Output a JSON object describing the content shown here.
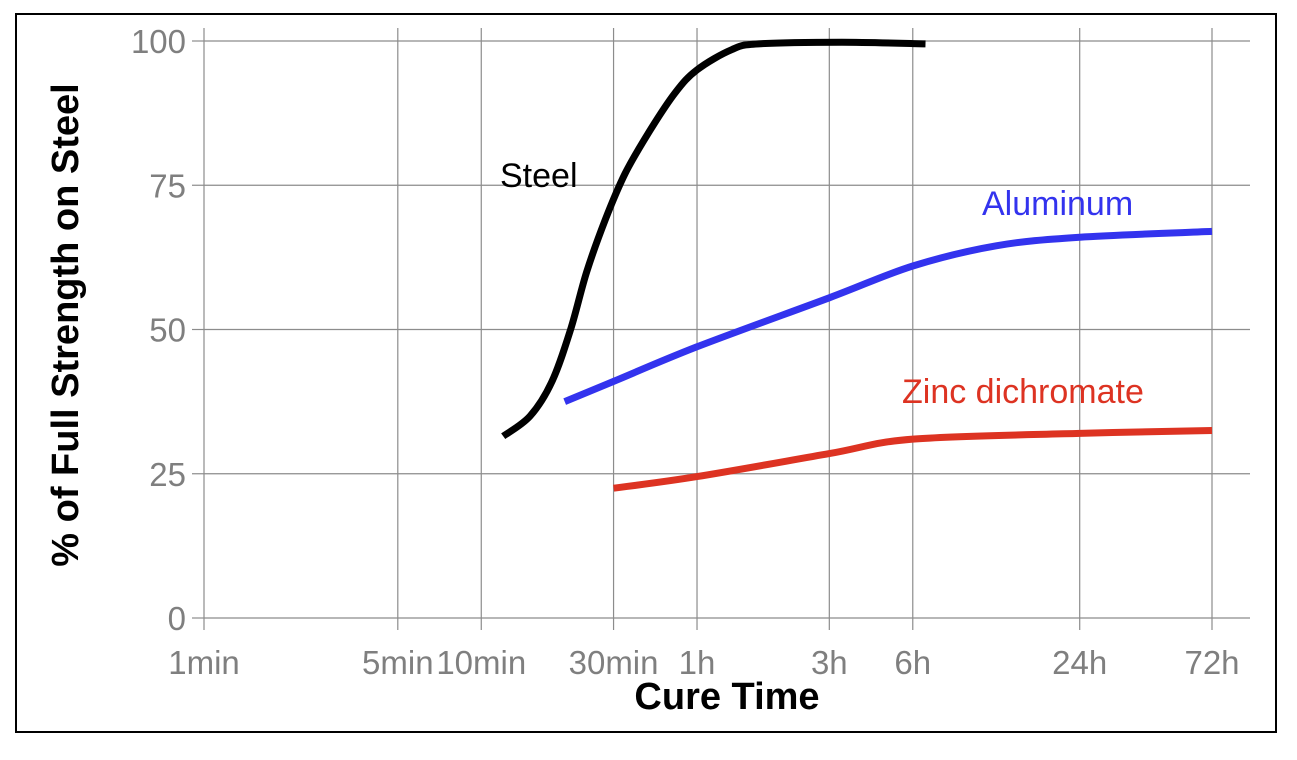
{
  "chart_data": {
    "type": "line",
    "xlabel": "Cure Time",
    "ylabel": "% of Full Strength on Steel",
    "x_scale": "log",
    "x_unit": "minutes",
    "xlim": [
      1,
      4320
    ],
    "ylim": [
      0,
      100
    ],
    "grid": true,
    "x_ticks": [
      {
        "label": "1min",
        "value": 1
      },
      {
        "label": "5min",
        "value": 5
      },
      {
        "label": "10min",
        "value": 10
      },
      {
        "label": "30min",
        "value": 30
      },
      {
        "label": "1h",
        "value": 60
      },
      {
        "label": "3h",
        "value": 180
      },
      {
        "label": "6h",
        "value": 360
      },
      {
        "label": "24h",
        "value": 1440
      },
      {
        "label": "72h",
        "value": 4320
      }
    ],
    "y_ticks": [
      {
        "label": "0",
        "value": 0
      },
      {
        "label": "25",
        "value": 25
      },
      {
        "label": "50",
        "value": 50
      },
      {
        "label": "75",
        "value": 75
      },
      {
        "label": "100",
        "value": 100
      }
    ],
    "series": [
      {
        "name": "Steel",
        "color": "#000000",
        "points": [
          [
            12,
            31.5
          ],
          [
            15,
            35
          ],
          [
            18,
            41
          ],
          [
            21,
            50
          ],
          [
            24,
            60
          ],
          [
            28,
            69
          ],
          [
            33,
            77
          ],
          [
            40,
            84
          ],
          [
            50,
            91
          ],
          [
            60,
            95
          ],
          [
            80,
            98.5
          ],
          [
            100,
            99.5
          ],
          [
            200,
            99.8
          ],
          [
            400,
            99.5
          ]
        ]
      },
      {
        "name": "Aluminum",
        "color": "#3333ee",
        "points": [
          [
            20,
            37.5
          ],
          [
            30,
            41
          ],
          [
            60,
            47
          ],
          [
            180,
            55.5
          ],
          [
            360,
            61
          ],
          [
            720,
            64.5
          ],
          [
            1440,
            66
          ],
          [
            4320,
            67
          ]
        ]
      },
      {
        "name": "Zinc dichromate",
        "color": "#dd3322",
        "points": [
          [
            30,
            22.5
          ],
          [
            60,
            24.5
          ],
          [
            180,
            28.5
          ],
          [
            360,
            31
          ],
          [
            1440,
            32
          ],
          [
            4320,
            32.5
          ]
        ]
      }
    ]
  }
}
